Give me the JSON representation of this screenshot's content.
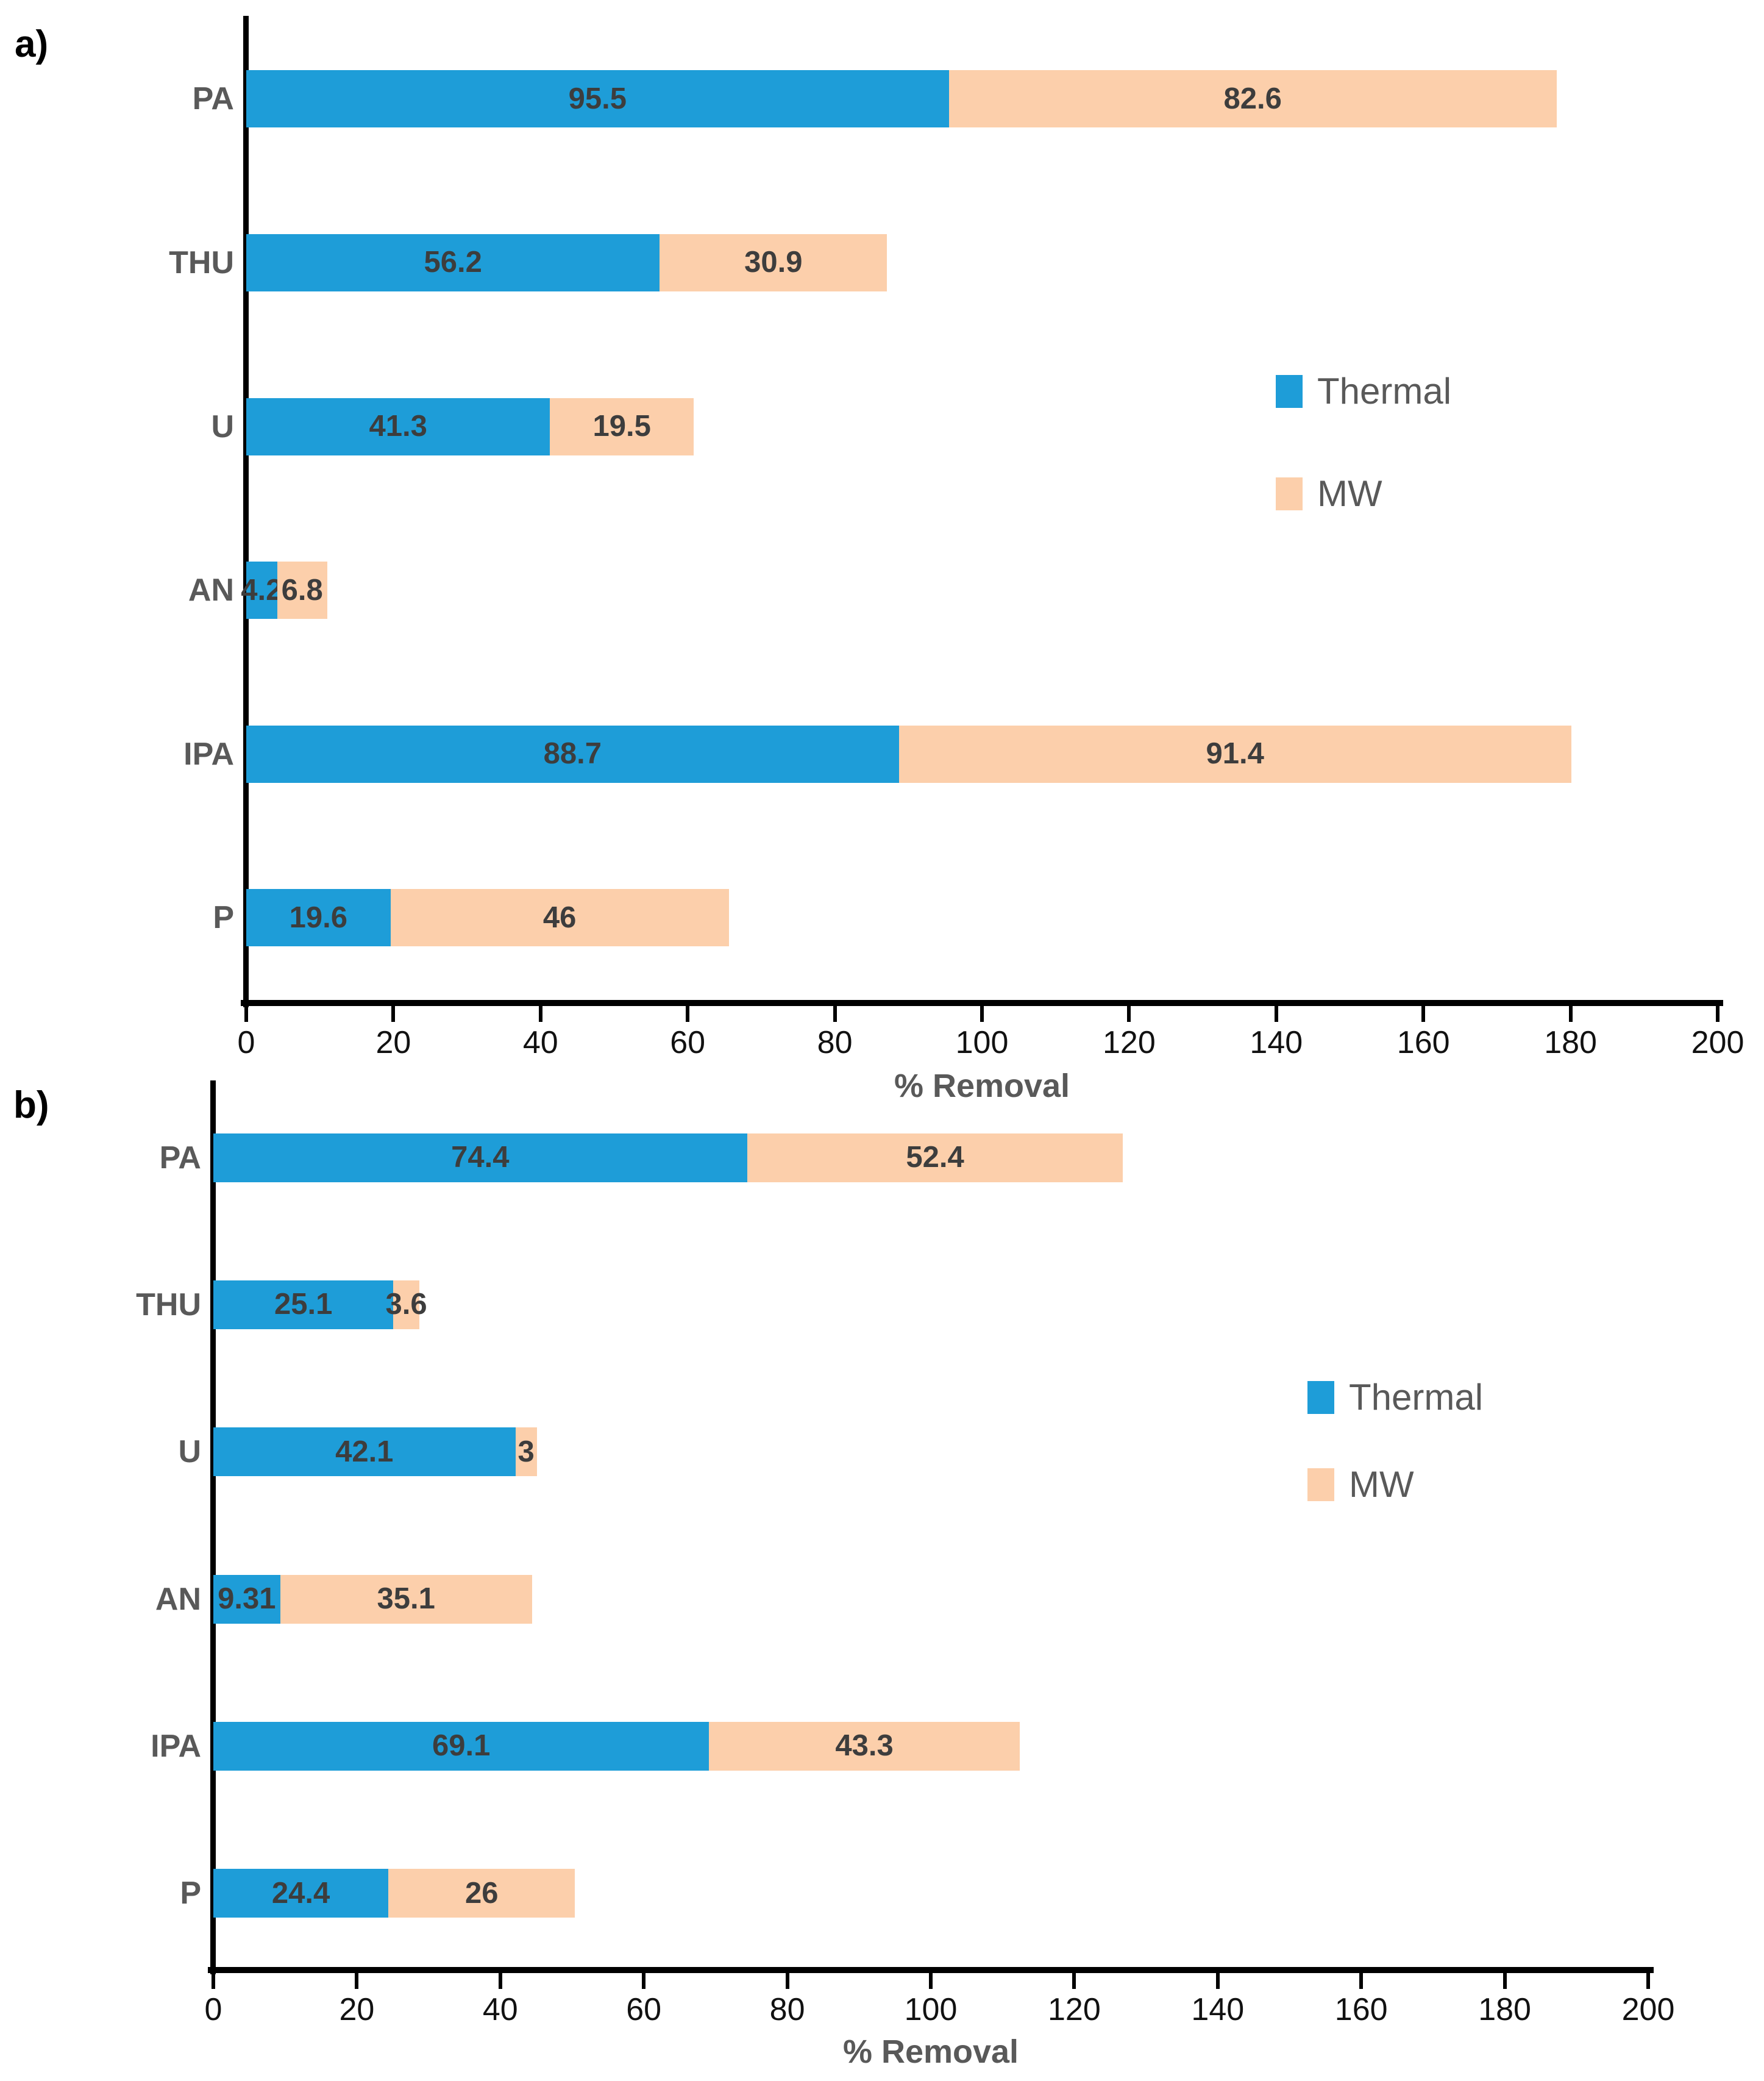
{
  "colors": {
    "thermal": "#1e9dd8",
    "mw": "#fccfab",
    "label_gray": "#595959",
    "value_gray": "#3d3d3d",
    "axis_black": "#000000"
  },
  "chart_data": [
    {
      "id": "a",
      "panel_label": "a)",
      "type": "bar",
      "orientation": "horizontal",
      "stacked": true,
      "grid": false,
      "categories": [
        "PA",
        "THU",
        "U",
        "AN",
        "IPA",
        "P"
      ],
      "series": [
        {
          "name": "Thermal",
          "color_key": "thermal",
          "values": [
            95.5,
            56.2,
            41.3,
            4.2,
            88.7,
            19.6
          ]
        },
        {
          "name": "MW",
          "color_key": "mw",
          "values": [
            82.6,
            30.9,
            19.5,
            6.8,
            91.4,
            46
          ]
        }
      ],
      "data_labels": [
        [
          "95.5",
          "56.2",
          "41.3",
          "4.2",
          "88.7",
          "19.6"
        ],
        [
          "82.6",
          "30.9",
          "19.5",
          "6.8",
          "91.4",
          "46"
        ]
      ],
      "xlabel": "% Removal",
      "xlim": [
        0,
        200
      ],
      "xticks": [
        0,
        20,
        40,
        60,
        80,
        100,
        120,
        140,
        160,
        180,
        200
      ],
      "legend_position": "right-middle",
      "legend": [
        {
          "label": "Thermal",
          "color_key": "thermal"
        },
        {
          "label": "MW",
          "color_key": "mw"
        }
      ]
    },
    {
      "id": "b",
      "panel_label": "b)",
      "type": "bar",
      "orientation": "horizontal",
      "stacked": true,
      "grid": false,
      "categories": [
        "PA",
        "THU",
        "U",
        "AN",
        "IPA",
        "P"
      ],
      "series": [
        {
          "name": "Thermal",
          "color_key": "thermal",
          "values": [
            74.4,
            25.1,
            42.1,
            9.31,
            69.1,
            24.4
          ]
        },
        {
          "name": "MW",
          "color_key": "mw",
          "values": [
            52.4,
            3.6,
            3,
            35.1,
            43.3,
            26
          ]
        }
      ],
      "data_labels": [
        [
          "74.4",
          "25.1",
          "42.1",
          "9.31",
          "69.1",
          "24.4"
        ],
        [
          "52.4",
          "3.6",
          "3",
          "35.1",
          "43.3",
          "26"
        ]
      ],
      "xlabel": "% Removal",
      "xlim": [
        0,
        200
      ],
      "xticks": [
        0,
        20,
        40,
        60,
        80,
        100,
        120,
        140,
        160,
        180,
        200
      ],
      "legend_position": "right-middle",
      "legend": [
        {
          "label": "Thermal",
          "color_key": "thermal"
        },
        {
          "label": "MW",
          "color_key": "mw"
        }
      ]
    }
  ]
}
